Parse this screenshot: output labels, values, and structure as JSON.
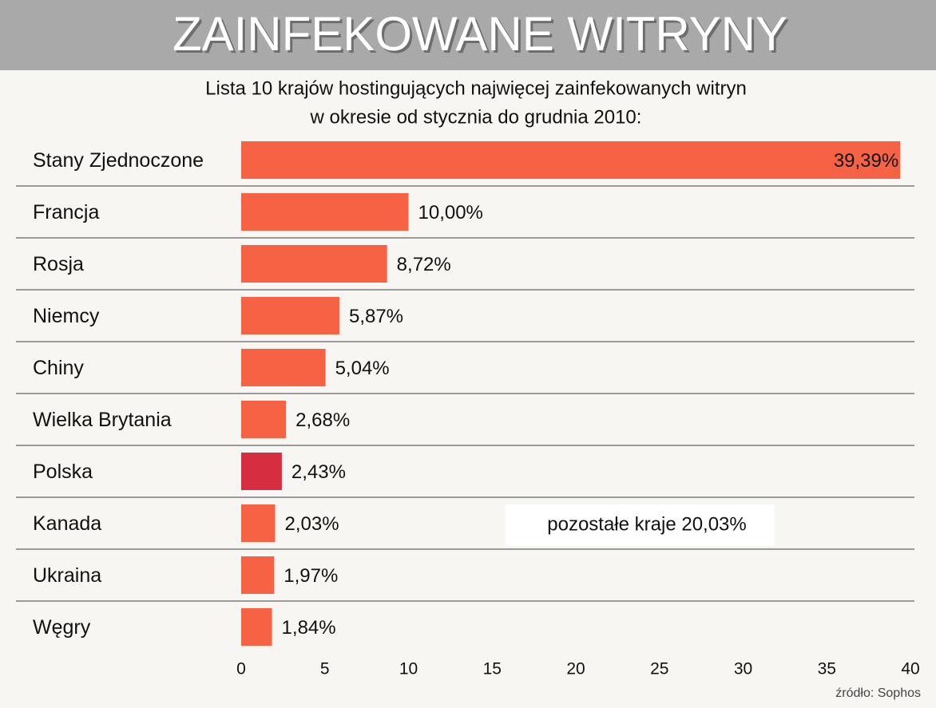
{
  "chart_data": {
    "type": "bar",
    "orientation": "horizontal",
    "title": "ZAINFEKOWANE WITRYNY",
    "subtitle": [
      "Lista 10 krajów hostingujących najwięcej zainfekowanych witryn",
      "w okresie od stycznia do grudnia 2010:"
    ],
    "categories": [
      "Stany Zjednoczone",
      "Francja",
      "Rosja",
      "Niemcy",
      "Chiny",
      "Wielka Brytania",
      "Polska",
      "Kanada",
      "Ukraina",
      "Węgry"
    ],
    "values": [
      39.39,
      10.0,
      8.72,
      5.87,
      5.04,
      2.68,
      2.43,
      2.03,
      1.97,
      1.84
    ],
    "value_labels": [
      "39,39%",
      "10,00%",
      "8,72%",
      "5,87%",
      "5,04%",
      "2,68%",
      "2,43%",
      "2,03%",
      "1,97%",
      "1,84%"
    ],
    "colors": [
      "#f56244",
      "#f56244",
      "#f56244",
      "#f56244",
      "#f56244",
      "#f56244",
      "#d62d41",
      "#f56244",
      "#f56244",
      "#f56244"
    ],
    "xlim": [
      0,
      40
    ],
    "xticks": [
      0,
      5,
      10,
      15,
      20,
      25,
      30,
      35,
      40
    ],
    "annotation": "pozostałe kraje 20,03%",
    "source": "źródło: Sophos"
  }
}
